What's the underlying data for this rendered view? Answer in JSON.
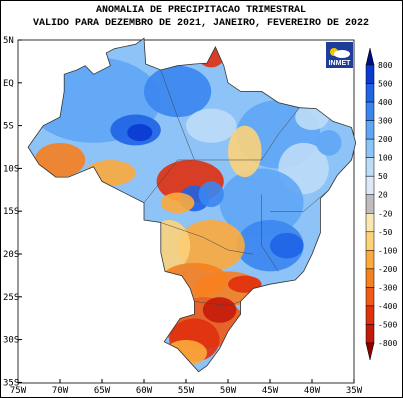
{
  "header": {
    "title": "ANOMALIA DE PRECIPITACAO TRIMESTRAL",
    "subtitle": "VALIDO PARA DEZEMBRO DE 2021, JANEIRO, FEVEREIRO DE 2022"
  },
  "logo": {
    "text": "INMET"
  },
  "axes": {
    "latitude_labels": [
      "5N",
      "EQ",
      "5S",
      "10S",
      "15S",
      "20S",
      "25S",
      "30S",
      "35S"
    ],
    "longitude_labels": [
      "75W",
      "70W",
      "65W",
      "60W",
      "55W",
      "50W",
      "45W",
      "40W",
      "35W"
    ]
  },
  "colorbar": {
    "ticks": [
      800,
      500,
      400,
      300,
      200,
      100,
      50,
      20,
      -20,
      -50,
      -100,
      -200,
      -300,
      -400,
      -500,
      -800
    ],
    "colors": [
      "#000c80",
      "#0a3ad1",
      "#1f63e6",
      "#3a86f0",
      "#5fa6f5",
      "#8ec3f7",
      "#bcdcf7",
      "#ddeaf5",
      "#bdbdbd",
      "#f7e9b0",
      "#fcd27a",
      "#fcaa3c",
      "#f7801e",
      "#ef5a14",
      "#e0300e",
      "#c41a0a",
      "#8b0000"
    ]
  }
}
